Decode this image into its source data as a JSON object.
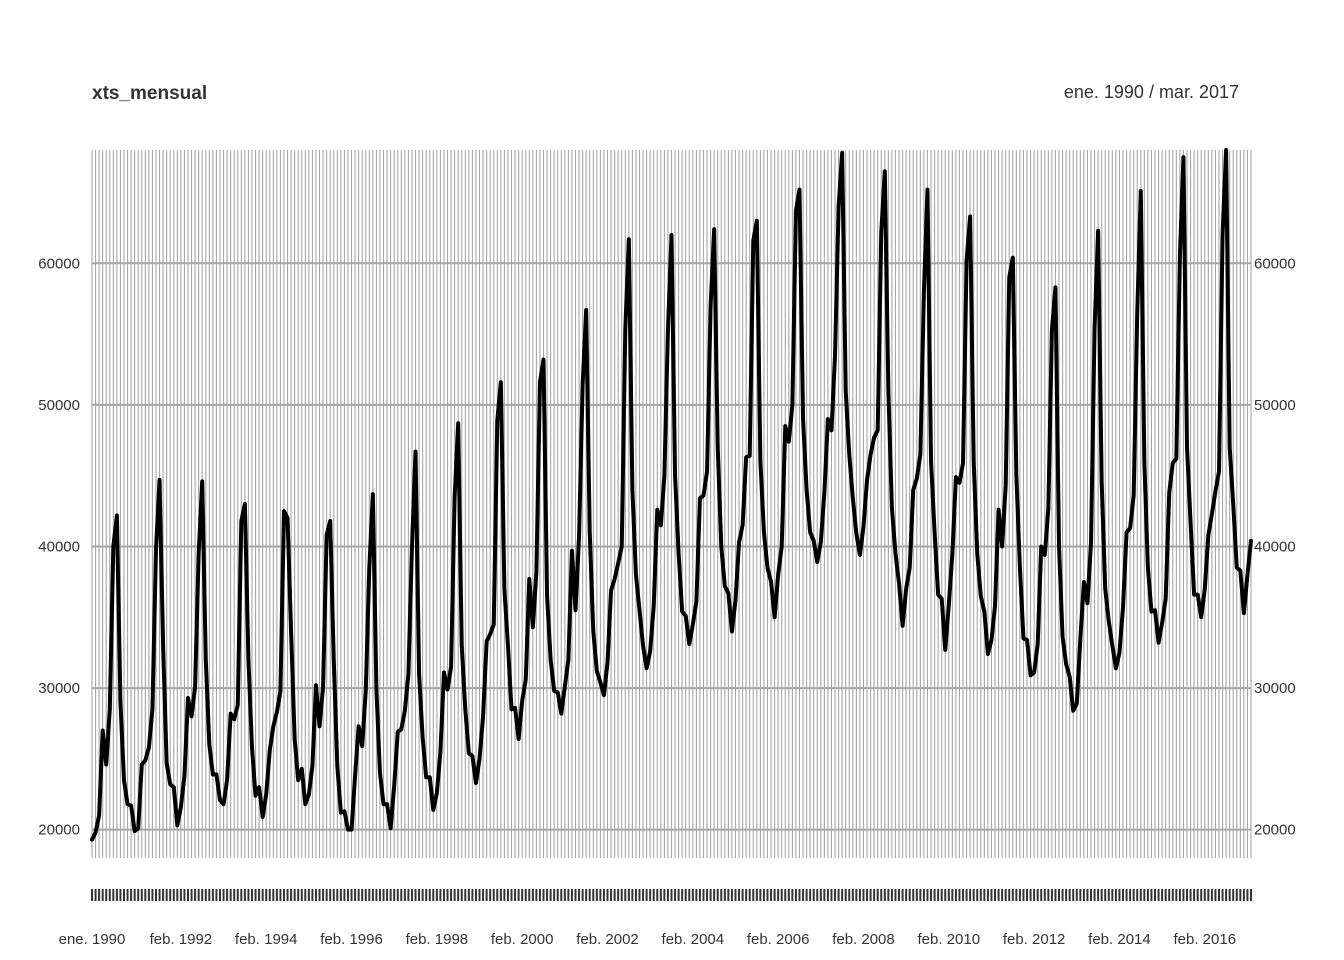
{
  "chart_data": {
    "type": "line",
    "title": "xts_mensual",
    "date_range_label": "ene. 1990 / mar. 2017",
    "frequency": "monthly",
    "start": "1990-01",
    "end": "2017-03",
    "x_tick_labels": [
      "ene. 1990",
      "feb. 1992",
      "feb. 1994",
      "feb. 1996",
      "feb. 1998",
      "feb. 2000",
      "feb. 2002",
      "feb. 2004",
      "feb. 2006",
      "feb. 2008",
      "feb. 2010",
      "feb. 2012",
      "feb. 2014",
      "feb. 2016"
    ],
    "y_ticks": [
      20000,
      30000,
      40000,
      50000,
      60000
    ],
    "ylim": [
      18000,
      68000
    ],
    "grid": true,
    "line_color": "#000000",
    "grid_color": "#a6a6a6",
    "series": [
      {
        "values": [
          19300,
          19800,
          21000,
          27000,
          24600,
          28500,
          40000,
          42200,
          29000,
          23500,
          21800,
          21700,
          19900,
          20100,
          24600,
          24900,
          25800,
          28500,
          39800,
          44700,
          33000,
          24700,
          23200,
          23000,
          20300,
          21600,
          23800,
          29300,
          28000,
          30100,
          39500,
          44600,
          32000,
          26000,
          23900,
          23900,
          22100,
          21800,
          23500,
          28200,
          27800,
          28800,
          41800,
          43000,
          32000,
          25800,
          22400,
          23000,
          20900,
          22500,
          25600,
          27300,
          28300,
          29800,
          42500,
          42000,
          34000,
          26400,
          23500,
          24300,
          21800,
          22500,
          24500,
          30200,
          27300,
          30100,
          40800,
          41800,
          32000,
          24500,
          21200,
          21300,
          20000,
          20000,
          23800,
          27300,
          25900,
          29800,
          38500,
          43700,
          29900,
          24000,
          21800,
          21800,
          20100,
          23100,
          26900,
          27100,
          28400,
          31000,
          40000,
          46700,
          31000,
          26500,
          23700,
          23700,
          21400,
          22600,
          25500,
          31100,
          29900,
          31500,
          43500,
          48700,
          33000,
          28500,
          25400,
          25200,
          23300,
          25000,
          28000,
          33300,
          33800,
          34500,
          48900,
          51600,
          37000,
          33000,
          28500,
          28600,
          26400,
          29100,
          30600,
          37700,
          34300,
          38200,
          51600,
          53200,
          36500,
          32000,
          29800,
          29700,
          28200,
          30100,
          32000,
          39700,
          35500,
          40700,
          51400,
          56700,
          41000,
          34000,
          31200,
          30400,
          29500,
          31800,
          36900,
          37700,
          38800,
          40000,
          55300,
          61700,
          44000,
          38000,
          35500,
          33000,
          31400,
          32600,
          35800,
          42600,
          41500,
          45000,
          55300,
          62000,
          45000,
          39500,
          35400,
          35100,
          33100,
          34500,
          36100,
          43400,
          43600,
          45300,
          57000,
          62400,
          47000,
          40000,
          37200,
          36700,
          34000,
          36200,
          40300,
          41500,
          46300,
          46400,
          61600,
          63000,
          46000,
          41000,
          38500,
          37500,
          35000,
          38000,
          40000,
          48500,
          47400,
          50000,
          63700,
          65200,
          49000,
          44000,
          41000,
          40400,
          38900,
          40300,
          43800,
          49000,
          48200,
          53500,
          64000,
          67800,
          51000,
          46500,
          43400,
          40900,
          39400,
          41400,
          44700,
          46500,
          47700,
          48200,
          62200,
          66500,
          51000,
          42700,
          39500,
          37400,
          34400,
          37000,
          38500,
          44000,
          44800,
          46500,
          58000,
          65200,
          46000,
          41000,
          36600,
          36300,
          32700,
          35900,
          39500,
          44900,
          44500,
          45900,
          60200,
          63300,
          46000,
          39500,
          36500,
          35400,
          32400,
          33400,
          35800,
          42600,
          40000,
          44300,
          59000,
          60400,
          45000,
          38500,
          33500,
          33400,
          30900,
          31100,
          33100,
          40000,
          39400,
          42700,
          55300,
          58300,
          40000,
          33600,
          31700,
          30800,
          28400,
          28900,
          33500,
          37500,
          36000,
          40300,
          55400,
          62300,
          44500,
          37000,
          34700,
          33000,
          31400,
          32500,
          35700,
          41000,
          41300,
          43600,
          56500,
          65100,
          46000,
          38500,
          35400,
          35500,
          33200,
          34600,
          36300,
          43800,
          45900,
          46200,
          60500,
          67500,
          47000,
          41700,
          36600,
          36600,
          35000,
          37000,
          40800,
          42300,
          43900,
          45300,
          62000,
          68000,
          47000,
          43000,
          38500,
          38300,
          35300,
          38000,
          40400
        ]
      }
    ]
  }
}
